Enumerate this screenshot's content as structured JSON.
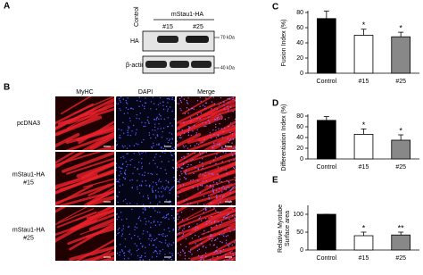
{
  "panel_labels": [
    "A",
    "B"
  ],
  "blot": {
    "lane_header": "Control",
    "group_label": "mStau1-HA",
    "lanes": [
      "#15",
      "#25"
    ],
    "rows": [
      "HA",
      "β-actin"
    ],
    "markers": [
      "70 kDa",
      "40 kDa"
    ]
  },
  "microscopy": {
    "columns": [
      "MyHC",
      "DAPI",
      "Merge"
    ],
    "rows": [
      [
        "pcDNA3"
      ],
      [
        "mStau1-HA",
        "#15"
      ],
      [
        "mStau1-HA",
        "#25"
      ]
    ]
  },
  "chart_data": [
    {
      "type": "bar",
      "label": "C",
      "y_label": "Fusion Index (%)",
      "categories": [
        "Control",
        "#15",
        "#25"
      ],
      "values": [
        72,
        50,
        48
      ],
      "errors": [
        10,
        8,
        6
      ],
      "stars": [
        null,
        "*",
        "*"
      ],
      "colors": [
        "#000000",
        "#ffffff",
        "#888888"
      ],
      "ylim": [
        0,
        80
      ],
      "yticks": [
        0,
        20,
        40,
        60,
        80
      ]
    },
    {
      "type": "bar",
      "label": "D",
      "y_label": "Differentiation Index (%)",
      "categories": [
        "Control",
        "#15",
        "#25"
      ],
      "values": [
        72,
        46,
        35
      ],
      "errors": [
        7,
        10,
        10
      ],
      "stars": [
        null,
        "*",
        "*"
      ],
      "colors": [
        "#000000",
        "#ffffff",
        "#888888"
      ],
      "ylim": [
        0,
        80
      ],
      "yticks": [
        0,
        20,
        40,
        60,
        80
      ]
    },
    {
      "type": "bar",
      "label": "E",
      "y_label": [
        "Relative Myotube",
        "Surface area"
      ],
      "categories": [
        "Control",
        "#15",
        "#25"
      ],
      "values": [
        100,
        40,
        42
      ],
      "errors": [
        0,
        10,
        8
      ],
      "stars": [
        null,
        "*",
        "**"
      ],
      "colors": [
        "#000000",
        "#ffffff",
        "#888888"
      ],
      "ylim": [
        0,
        120
      ],
      "yticks": [
        0,
        50,
        100
      ]
    }
  ]
}
